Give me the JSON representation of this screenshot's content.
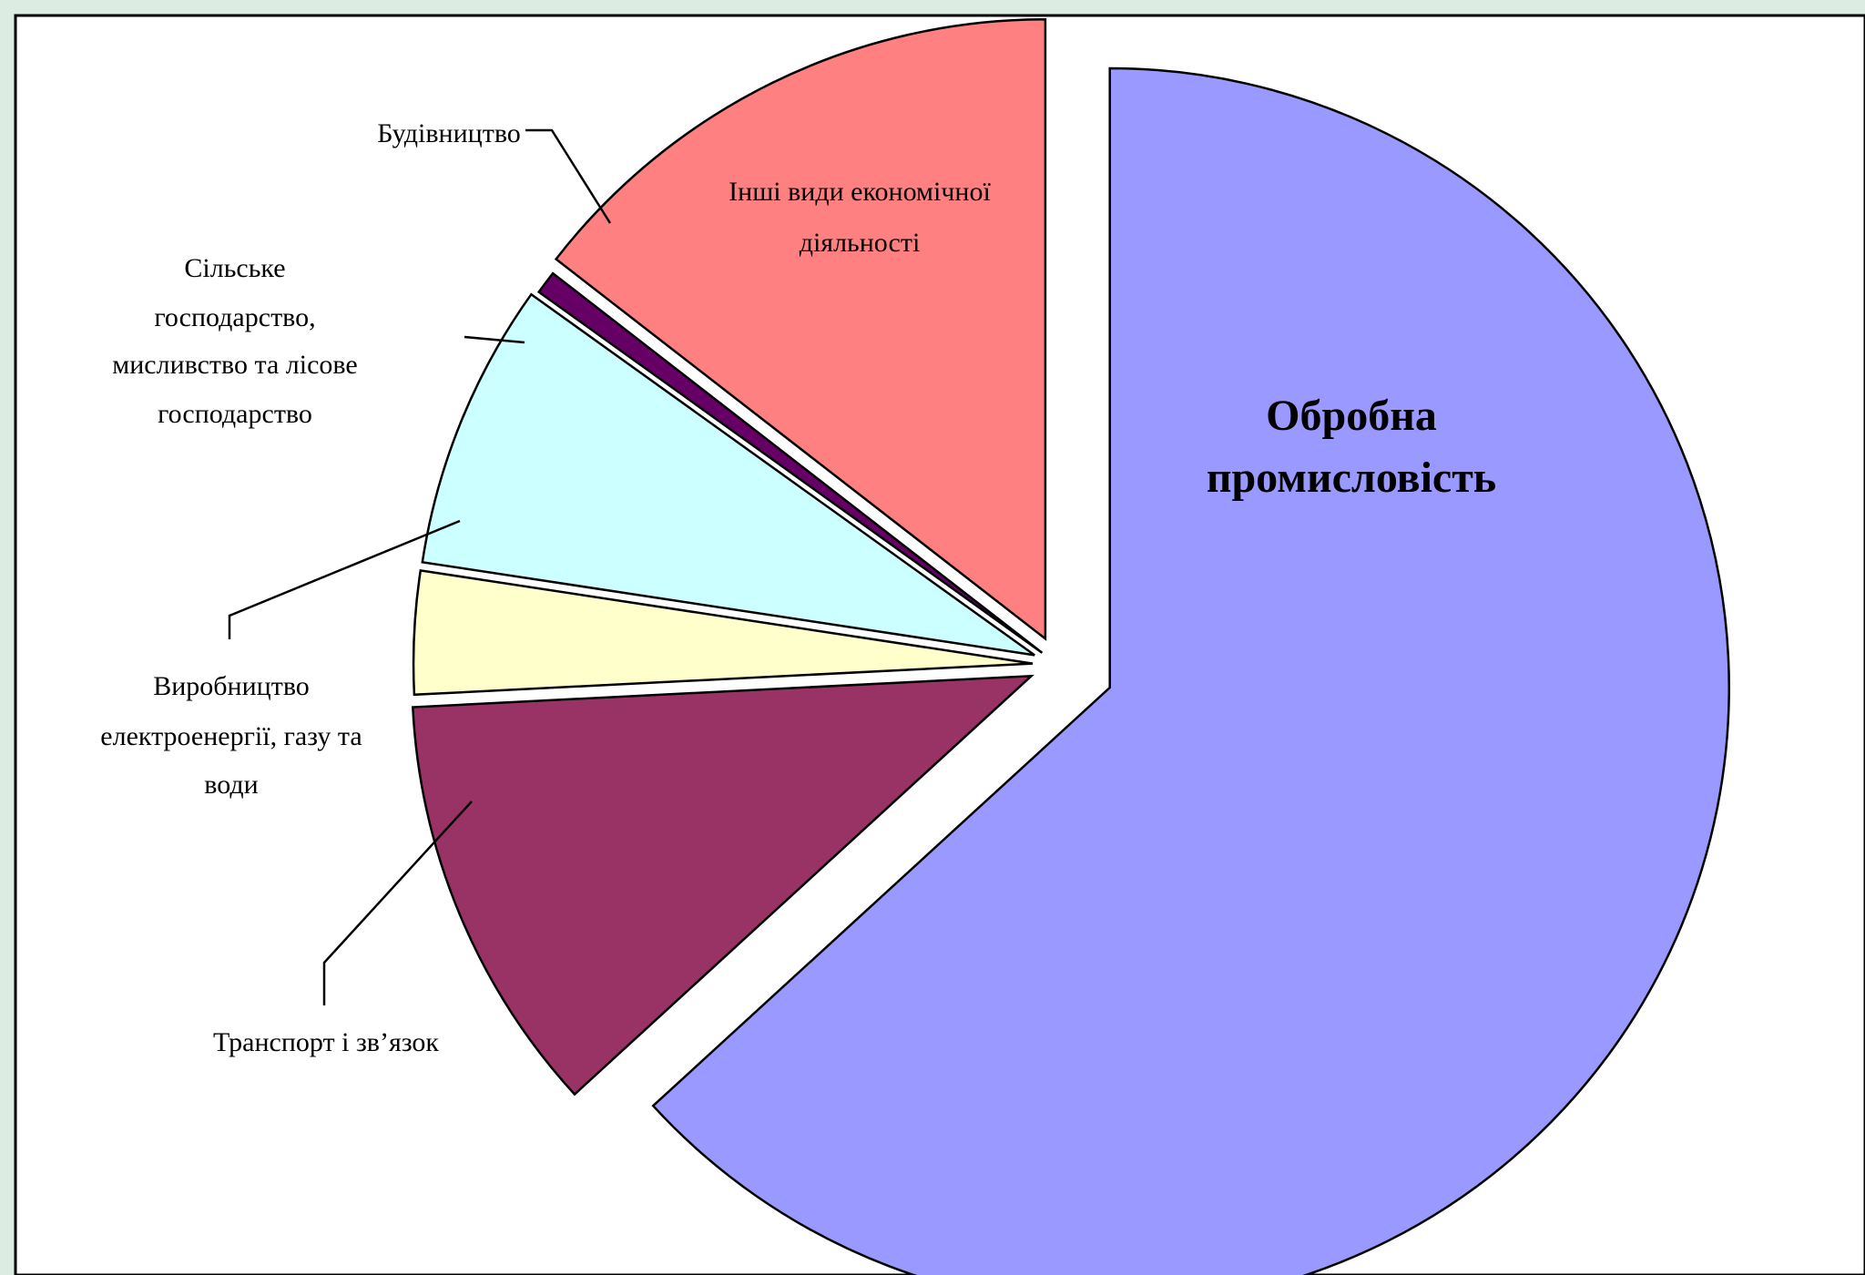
{
  "colors": {
    "frame_bg": "#dcece2",
    "plot_bg": "#ffffff",
    "plot_border": "#000000"
  },
  "chart_data": {
    "type": "pie",
    "title": "",
    "exploded": true,
    "start": "12 o'clock, clockwise",
    "slices": [
      {
        "label": "Обробна промисловість",
        "value": 63.2,
        "color": "#9999ff",
        "label_style": "bold",
        "label_position": "inside"
      },
      {
        "label": "Транспорт і зв’язок",
        "value": 11.0,
        "color": "#993366",
        "label_style": "normal",
        "label_position": "outside"
      },
      {
        "label": "Виробництво електроенергії, газу та води",
        "value": 3.2,
        "color": "#ffffcc",
        "label_style": "normal",
        "label_position": "outside"
      },
      {
        "label": "Сільське господарство, мисливство та лісове господарство",
        "value": 7.5,
        "color": "#ccffff",
        "label_style": "normal",
        "label_position": "outside"
      },
      {
        "label": "Будівництво",
        "value": 0.6,
        "color": "#660066",
        "label_style": "normal",
        "label_position": "outside"
      },
      {
        "label": "Інші види економічної діяльності",
        "value": 14.5,
        "color": "#ff8080",
        "label_style": "normal",
        "label_position": "inside"
      }
    ]
  }
}
